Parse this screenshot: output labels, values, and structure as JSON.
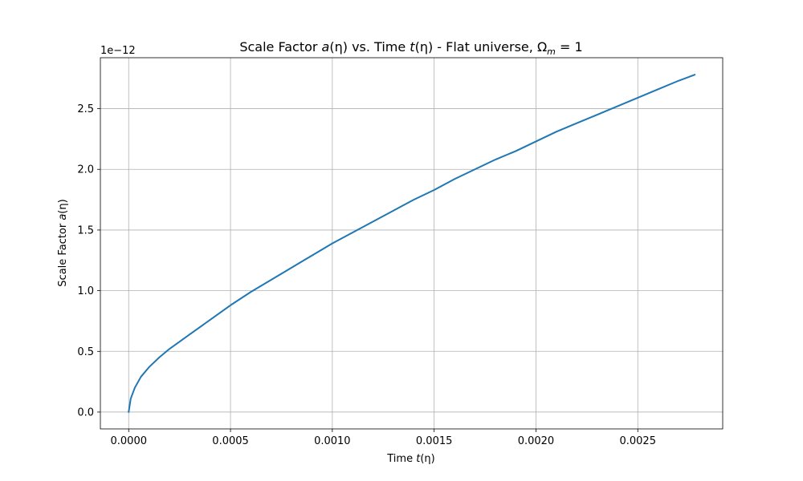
{
  "chart_data": {
    "type": "line",
    "title_parts": {
      "t1": "Scale Factor ",
      "a": "a",
      "eta1": "(η)",
      "t2": " vs. Time ",
      "t": "t",
      "eta2": "(η)",
      "t3": " - Flat universe, ",
      "omega": "Ω",
      "m": "m",
      "eq": " = 1"
    },
    "xlabel_parts": {
      "text": "Time ",
      "var": "t",
      "arg": "(η)"
    },
    "ylabel_parts": {
      "text": "Scale Factor ",
      "var": "a",
      "arg": "(η)"
    },
    "y_offset_label": "1e−12",
    "xlim": [
      -0.000139,
      0.002917
    ],
    "ylim": [
      -1.39e-13,
      2.92e-12
    ],
    "x_ticks": [
      0,
      0.0005,
      0.001,
      0.0015,
      0.002,
      0.0025
    ],
    "x_tick_labels": [
      "0.0000",
      "0.0005",
      "0.0010",
      "0.0015",
      "0.0020",
      "0.0025"
    ],
    "y_ticks": [
      0,
      5e-13,
      1e-12,
      1.5e-12,
      2e-12,
      2.5e-12
    ],
    "y_tick_labels": [
      "0.0",
      "0.5",
      "1.0",
      "1.5",
      "2.0",
      "2.5"
    ],
    "grid": true,
    "series": [
      {
        "color": "#1f77b4",
        "x": [
          0,
          1e-05,
          3e-05,
          6e-05,
          0.0001,
          0.00015,
          0.0002,
          0.0003,
          0.0004,
          0.0005,
          0.0006,
          0.0007,
          0.0008,
          0.0009,
          0.001,
          0.0011,
          0.0012,
          0.0013,
          0.0014,
          0.0015,
          0.0016,
          0.0017,
          0.0018,
          0.0019,
          0.002,
          0.0021,
          0.0022,
          0.0023,
          0.0024,
          0.0025,
          0.0026,
          0.0027,
          0.00278
        ],
        "y": [
          0,
          1.1e-13,
          2e-13,
          2.9e-13,
          3.7e-13,
          4.5e-13,
          5.2e-13,
          6.4e-13,
          7.6e-13,
          8.8e-13,
          9.9e-13,
          1.09e-12,
          1.19e-12,
          1.29e-12,
          1.39e-12,
          1.48e-12,
          1.57e-12,
          1.66e-12,
          1.75e-12,
          1.83e-12,
          1.92e-12,
          2e-12,
          2.08e-12,
          2.15e-12,
          2.23e-12,
          2.31e-12,
          2.38e-12,
          2.45e-12,
          2.52e-12,
          2.59e-12,
          2.66e-12,
          2.73e-12,
          2.78e-12
        ]
      }
    ]
  }
}
